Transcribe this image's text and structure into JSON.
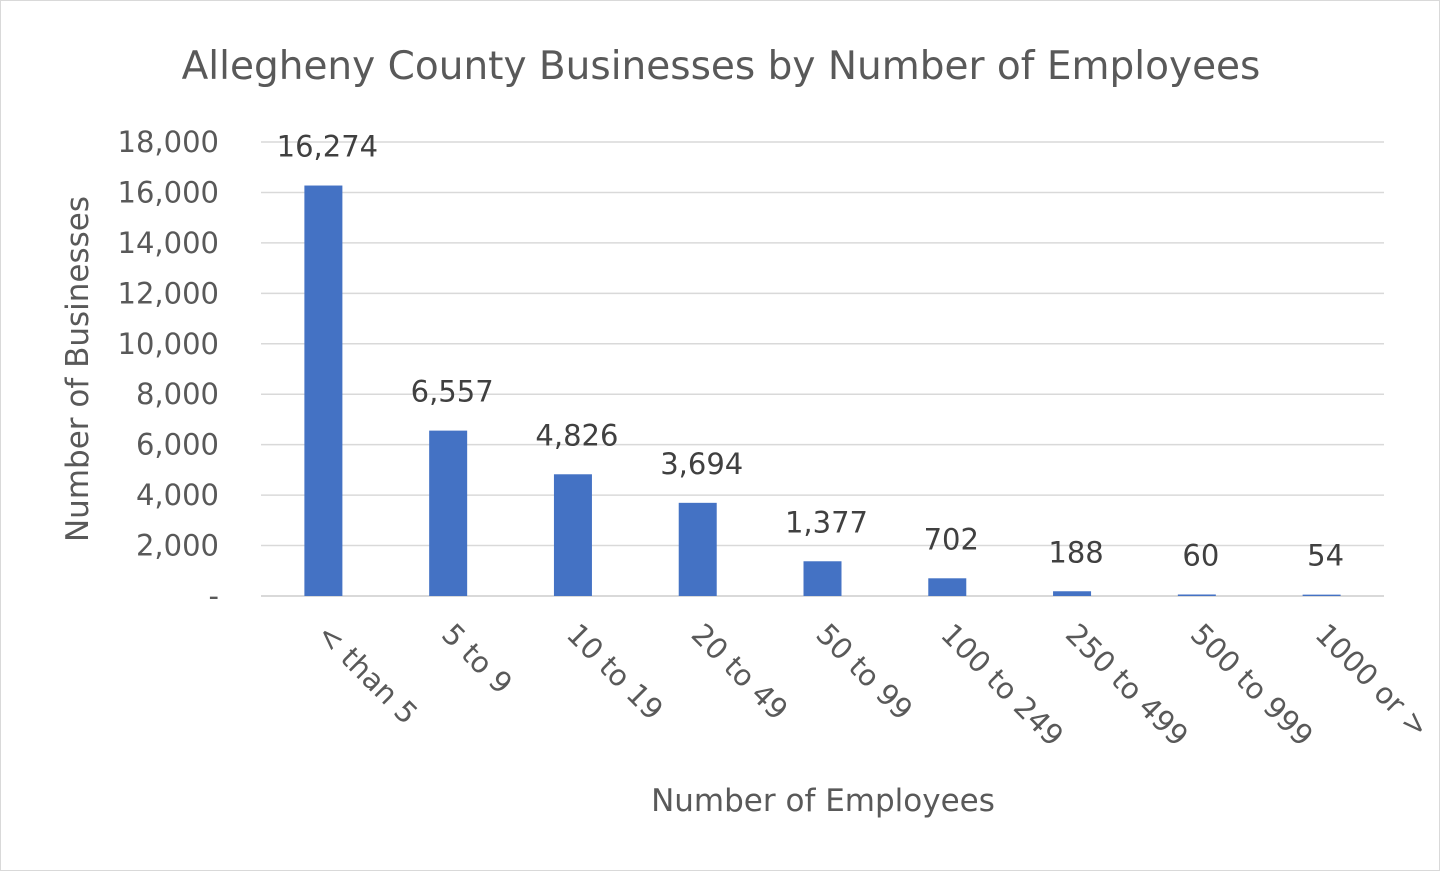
{
  "chart_data": {
    "type": "bar",
    "title": "Allegheny County Businesses by Number of Employees",
    "xlabel": "Number of Employees",
    "ylabel": "Number of Businesses",
    "categories": [
      "< than 5",
      "5 to 9",
      "10 to 19",
      "20 to 49",
      "50 to 99",
      "100 to 249",
      "250 to 499",
      "500 to 999",
      "1000 or >"
    ],
    "values": [
      16274,
      6557,
      4826,
      3694,
      1377,
      702,
      188,
      60,
      54
    ],
    "data_labels": [
      "16,274",
      "6,557",
      "4,826",
      "3,694",
      "1,377",
      "702",
      "188",
      "60",
      "54"
    ],
    "ylim": [
      0,
      18000
    ],
    "yticks": [
      0,
      2000,
      4000,
      6000,
      8000,
      10000,
      12000,
      14000,
      16000,
      18000
    ],
    "ytick_labels": [
      "-",
      "2,000",
      "4,000",
      "6,000",
      "8,000",
      "10,000",
      "12,000",
      "14,000",
      "16,000",
      "18,000"
    ],
    "grid": true,
    "legend": "none",
    "bar_color": "#4472C4"
  }
}
